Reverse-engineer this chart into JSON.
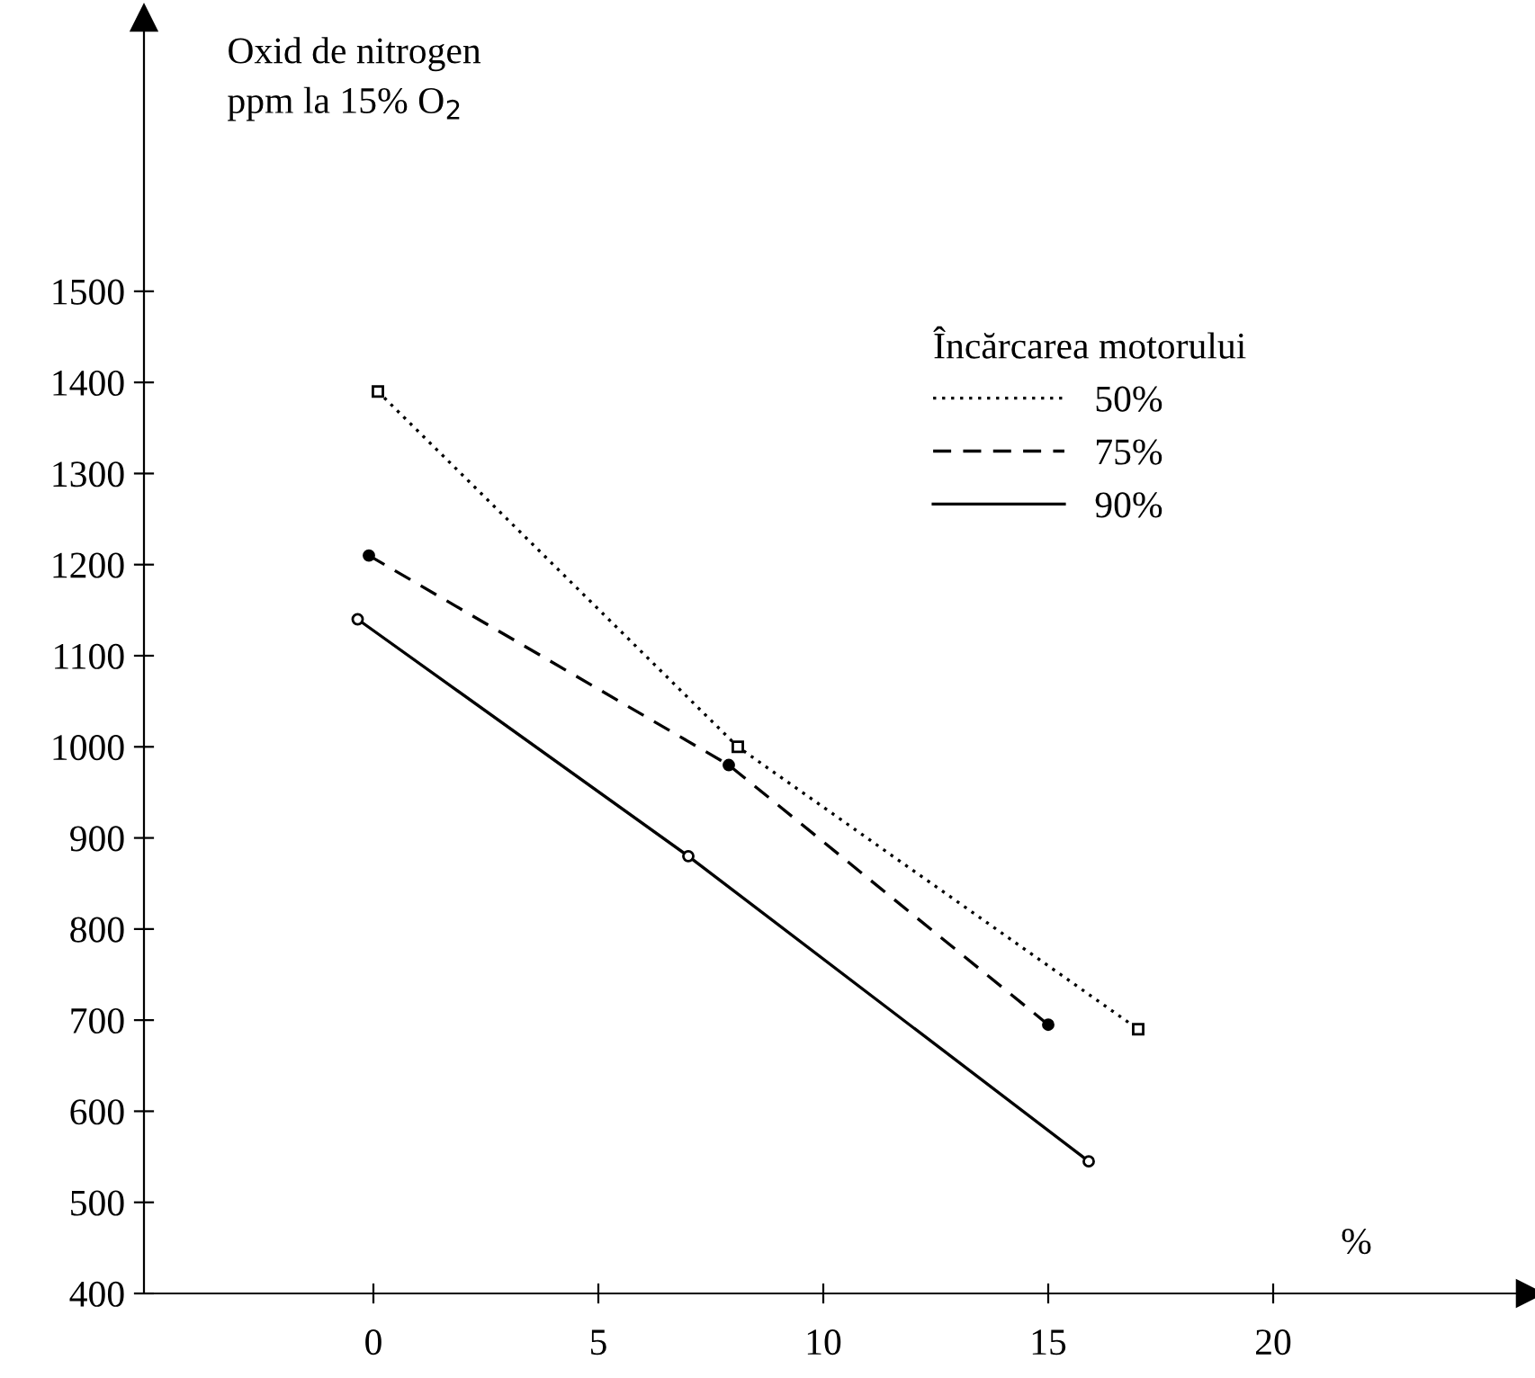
{
  "chart_data": {
    "type": "line",
    "ylabel": "Oxid de nitrogen\nppm la 15% O$_{2}$",
    "xlabel": "%",
    "legend_title": "Încărcarea motorului",
    "legend": "top right",
    "grid": false,
    "xlim": [
      -5.1,
      25.7
    ],
    "ylim": [
      400,
      1800
    ],
    "xticks": [
      0,
      5,
      10,
      15,
      20
    ],
    "yticks": [
      400,
      500,
      600,
      700,
      800,
      900,
      1000,
      1100,
      1200,
      1300,
      1400,
      1500
    ],
    "series": [
      {
        "name": "50%",
        "color": "#000000",
        "line_style": "dotted",
        "marker": "square",
        "x": [
          0.1,
          8.1,
          17.0
        ],
        "values": [
          1390,
          1000,
          690
        ]
      },
      {
        "name": "75%",
        "color": "#000000",
        "line_style": "dashed",
        "marker": "circle",
        "x": [
          -0.1,
          7.9,
          15.0
        ],
        "values": [
          1210,
          980,
          695
        ]
      },
      {
        "name": "90%",
        "color": "#000000",
        "line_style": "solid",
        "marker": "circle_open",
        "x": [
          -0.35,
          7.0,
          15.9
        ],
        "values": [
          1140,
          880,
          545
        ]
      }
    ]
  }
}
